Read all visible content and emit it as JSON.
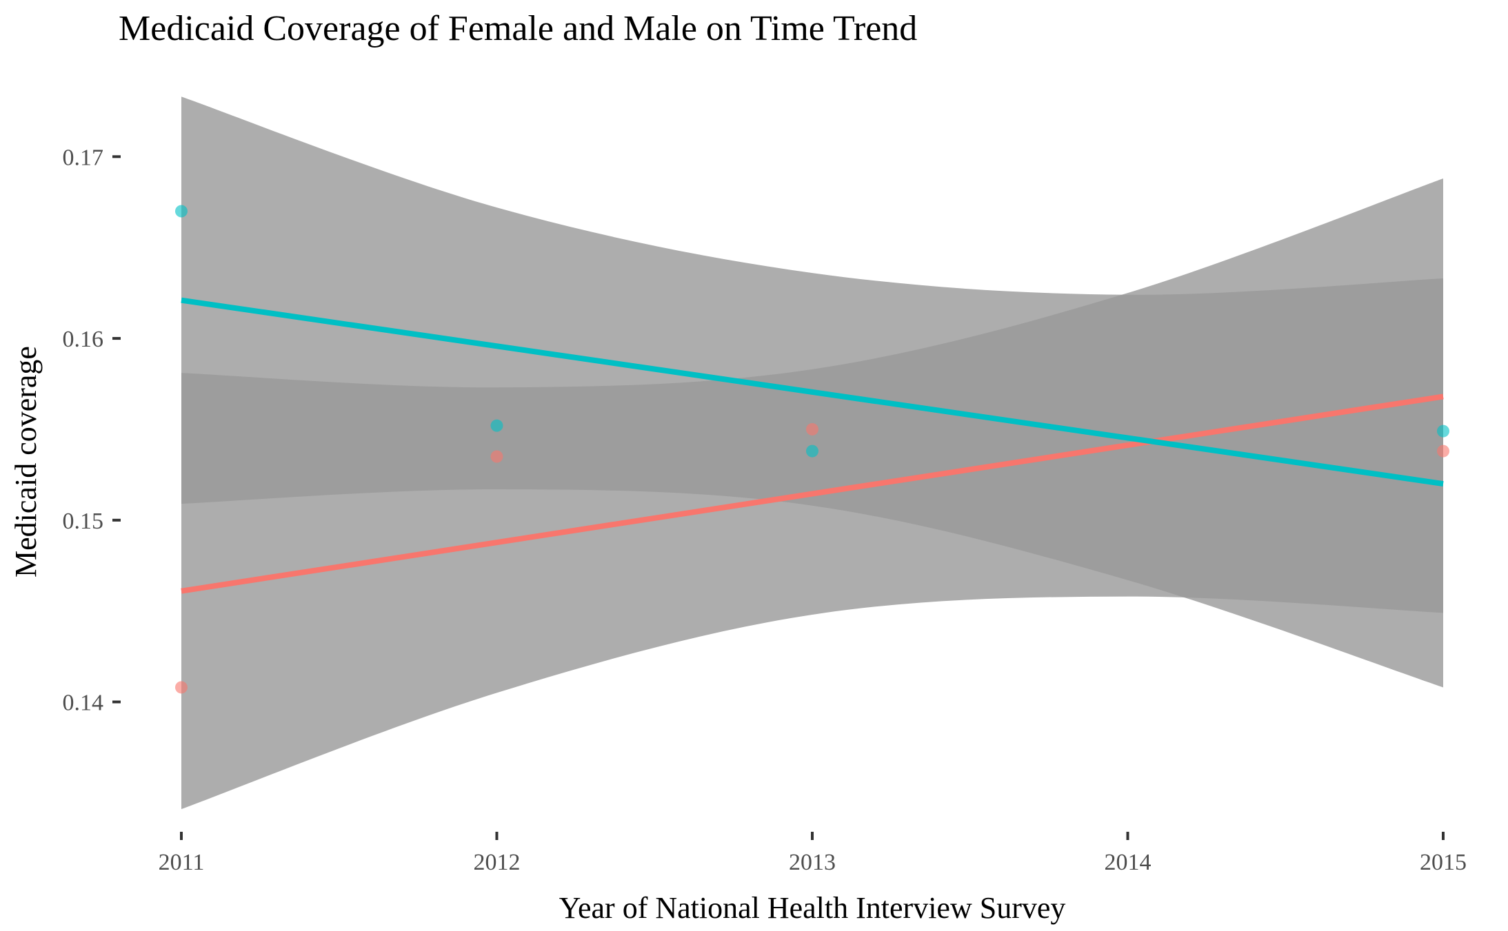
{
  "chart_data": {
    "type": "scatter",
    "title": "Medicaid Coverage of Female and Male on Time Trend",
    "xlabel": "Year of National Health Interview Survey",
    "ylabel": "Medicaid coverage",
    "x_ticks": [
      "2011",
      "2012",
      "2013",
      "2014",
      "2015"
    ],
    "y_ticks": [
      "0.14",
      "0.15",
      "0.16",
      "0.17"
    ],
    "xlim": [
      2011,
      2015
    ],
    "ylim": [
      0.1335,
      0.1735
    ],
    "grid": false,
    "legend": "none",
    "series": [
      {
        "color": "#F8766D",
        "points": [
          {
            "x": 2011,
            "y": 0.1408
          },
          {
            "x": 2012,
            "y": 0.1535
          },
          {
            "x": 2013,
            "y": 0.155
          },
          {
            "x": 2015,
            "y": 0.1538
          }
        ],
        "fit": {
          "x": [
            2011,
            2015
          ],
          "y": [
            0.1461,
            0.1568
          ]
        },
        "ribbon": {
          "x": [
            2011,
            2012,
            2013,
            2014,
            2015
          ],
          "upper": [
            0.1581,
            0.1573,
            0.1583,
            0.1625,
            0.1688
          ],
          "lower": [
            0.1341,
            0.1405,
            0.1448,
            0.1458,
            0.1449
          ]
        }
      },
      {
        "color": "#00BFC4",
        "points": [
          {
            "x": 2011,
            "y": 0.167
          },
          {
            "x": 2012,
            "y": 0.1552
          },
          {
            "x": 2013,
            "y": 0.1538
          },
          {
            "x": 2015,
            "y": 0.1549
          }
        ],
        "fit": {
          "x": [
            2011,
            2015
          ],
          "y": [
            0.1621,
            0.152
          ]
        },
        "ribbon": {
          "x": [
            2011,
            2012,
            2013,
            2014,
            2015
          ],
          "upper": [
            0.1733,
            0.1672,
            0.1636,
            0.1624,
            0.1633
          ],
          "lower": [
            0.1509,
            0.1517,
            0.1508,
            0.1467,
            0.1408
          ]
        }
      }
    ]
  }
}
